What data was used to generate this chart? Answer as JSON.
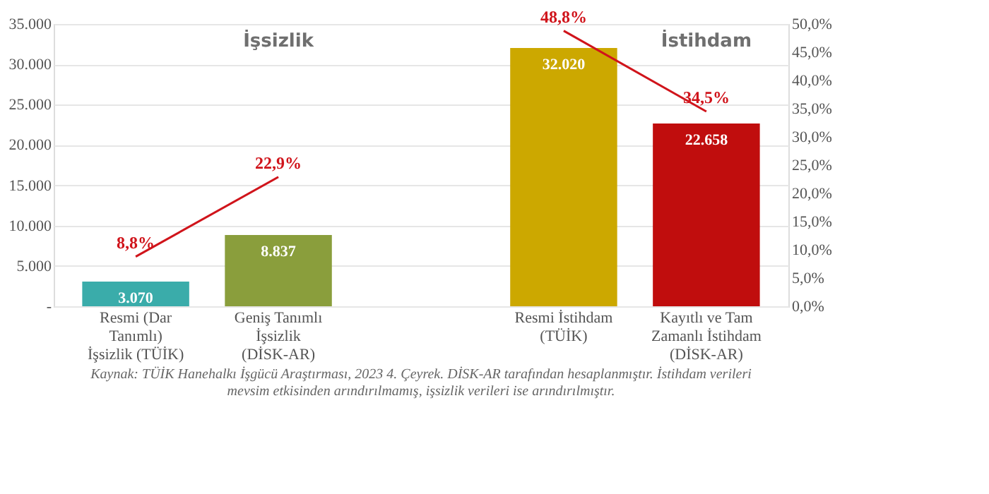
{
  "chart_data": {
    "type": "bar",
    "categories": [
      "Resmi (Dar Tanımlı) İşsizlik (TÜİK)",
      "Geniş Tanımlı İşsizlik (DİSK-AR)",
      null,
      "Resmi İstihdam (TÜİK)",
      "Kayıtlı ve Tam Zamanlı İstihdam (DİSK-AR)"
    ],
    "series": [
      {
        "colors": [
          "#3aacaa",
          "#8a9e3c",
          "#888888",
          "#cca800",
          "#c00d0d"
        ],
        "values": [
          3070,
          8837,
          null,
          32020,
          22658
        ],
        "value_labels": [
          "3.070",
          "8.837",
          null,
          "32.020",
          "22.658"
        ]
      },
      {
        "type": "line",
        "axis": "y2",
        "color": "#d0141b",
        "values": [
          8.8,
          22.9,
          null,
          48.8,
          34.5
        ],
        "value_labels": [
          "8,8%",
          "22,9%",
          null,
          "48,8%",
          "34,5%"
        ]
      }
    ],
    "ylim": [
      0,
      35000
    ],
    "yticks": [
      {
        "value": 0,
        "label": "-"
      },
      {
        "value": 5000,
        "label": "5.000"
      },
      {
        "value": 10000,
        "label": "10.000"
      },
      {
        "value": 15000,
        "label": "15.000"
      },
      {
        "value": 20000,
        "label": "20.000"
      },
      {
        "value": 25000,
        "label": "25.000"
      },
      {
        "value": 30000,
        "label": "30.000"
      },
      {
        "value": 35000,
        "label": "35.000"
      }
    ],
    "y2lim": [
      0,
      50
    ],
    "y2ticks": [
      {
        "value": 0,
        "label": "0,0%"
      },
      {
        "value": 5,
        "label": "5,0%"
      },
      {
        "value": 10,
        "label": "10,0%"
      },
      {
        "value": 15,
        "label": "15,0%"
      },
      {
        "value": 20,
        "label": "20,0%"
      },
      {
        "value": 25,
        "label": "25,0%"
      },
      {
        "value": 30,
        "label": "30,0%"
      },
      {
        "value": 35,
        "label": "35,0%"
      },
      {
        "value": 40,
        "label": "40,0%"
      },
      {
        "value": 45,
        "label": "45,0%"
      },
      {
        "value": 50,
        "label": "50,0%"
      }
    ],
    "grid": "y",
    "annotations": [
      "İşsizlik",
      "İstihdam",
      "Kaynak: TÜİK Hanehalkı İşgücü Araştırması, 2023 4. Çeyrek. DİSK-AR tarafından hesaplanmıştır. İstihdam verileri mevsim etkisinden arındırılmamış, işsizlik verileri ise arındırılmıştır."
    ]
  }
}
